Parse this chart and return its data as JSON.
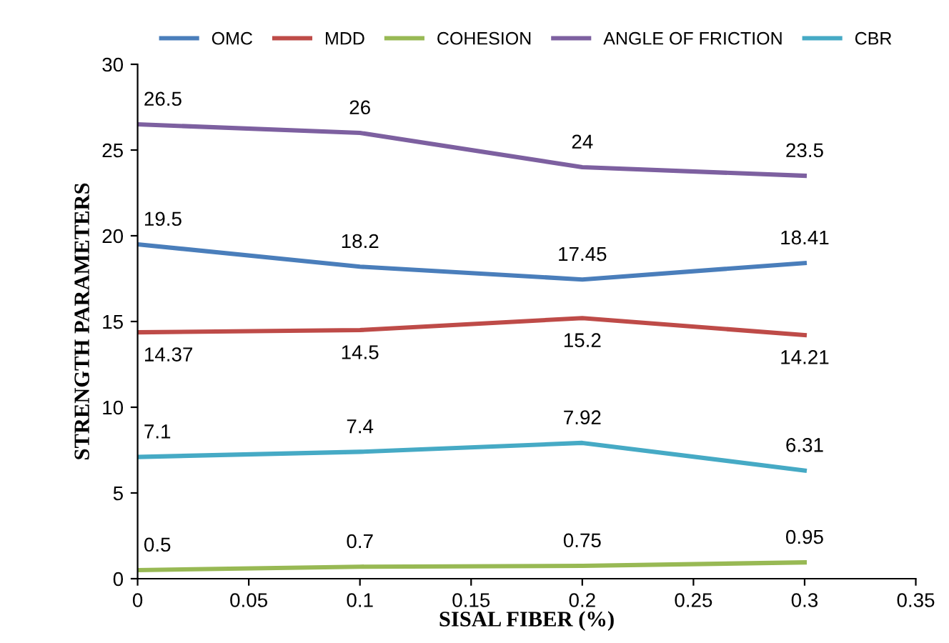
{
  "chart_data": {
    "type": "line",
    "xlabel": "SISAL FIBER (%)",
    "ylabel": "STRENGTH PARAMETERS",
    "x": [
      0,
      0.1,
      0.2,
      0.3
    ],
    "series": [
      {
        "name": "OMC",
        "color": "#4a7ebb",
        "values": [
          19.5,
          18.2,
          17.45,
          18.41
        ]
      },
      {
        "name": "MDD",
        "color": "#be4b48",
        "values": [
          14.37,
          14.5,
          15.2,
          14.21
        ]
      },
      {
        "name": "COHESION",
        "color": "#98b954",
        "values": [
          0.5,
          0.7,
          0.75,
          0.95
        ]
      },
      {
        "name": "ANGLE OF FRICTION",
        "color": "#7d60a0",
        "values": [
          26.5,
          26,
          24,
          23.5
        ]
      },
      {
        "name": "CBR",
        "color": "#46aac5",
        "values": [
          7.1,
          7.4,
          7.92,
          6.31
        ]
      }
    ],
    "xlim": [
      0,
      0.35
    ],
    "xticks": [
      0,
      0.05,
      0.1,
      0.15,
      0.2,
      0.25,
      0.3,
      0.35
    ],
    "ylim": [
      0,
      30
    ],
    "yticks": [
      0,
      5,
      10,
      15,
      20,
      25,
      30
    ],
    "data_labels": true,
    "legend": "top",
    "grid": false,
    "marker": "none",
    "line_style": "solid"
  }
}
